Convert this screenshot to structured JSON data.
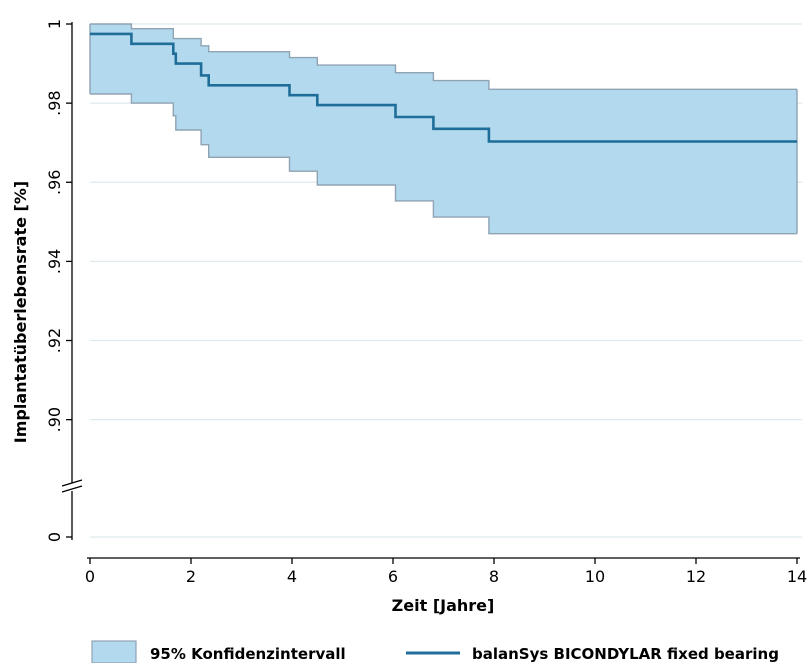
{
  "chart_data": {
    "type": "line",
    "title": "",
    "xlabel": "Zeit [Jahre]",
    "ylabel": "Implantatüberlebensrate [%]",
    "xlim": [
      0,
      14
    ],
    "ylim_upper": [
      0.885,
      1.0
    ],
    "broken_y_axis": true,
    "x_ticks": [
      0,
      2,
      4,
      6,
      8,
      10,
      12,
      14
    ],
    "x_tick_labels": [
      "0",
      "2",
      "4",
      "6",
      "8",
      "10",
      "12",
      "14"
    ],
    "y_ticks": [
      0.9,
      0.92,
      0.94,
      0.96,
      0.98,
      1.0
    ],
    "y_tick_labels": [
      ".90",
      ".92",
      ".94",
      ".96",
      ".98",
      "1"
    ],
    "y_break_tick_label": "0",
    "grid": "horizontal",
    "legend_position": "bottom",
    "legend": {
      "ci_label": "95% Konfidenzintervall",
      "series_label": "balanSys BICONDYLAR fixed bearing"
    },
    "colors": {
      "ci_fill": "#b3d9ef",
      "ci_edge": "#8fa3b3",
      "line": "#1f6e99",
      "grid": "#dfe9ee"
    },
    "series": [
      {
        "name": "balanSys BICONDYLAR fixed bearing",
        "steps": [
          {
            "x": 0.0,
            "y": 0.9975
          },
          {
            "x": 0.82,
            "y": 0.995
          },
          {
            "x": 1.65,
            "y": 0.9925
          },
          {
            "x": 1.7,
            "y": 0.99
          },
          {
            "x": 2.2,
            "y": 0.987
          },
          {
            "x": 2.35,
            "y": 0.9845
          },
          {
            "x": 3.95,
            "y": 0.982
          },
          {
            "x": 4.5,
            "y": 0.9795
          },
          {
            "x": 6.05,
            "y": 0.9765
          },
          {
            "x": 6.8,
            "y": 0.9735
          },
          {
            "x": 7.9,
            "y": 0.9703
          }
        ],
        "end_x": 14.0
      }
    ],
    "confidence_interval": {
      "upper": [
        {
          "x": 0.0,
          "y": 1.0
        },
        {
          "x": 0.82,
          "y": 0.9988
        },
        {
          "x": 1.65,
          "y": 0.9963
        },
        {
          "x": 2.2,
          "y": 0.9945
        },
        {
          "x": 2.35,
          "y": 0.993
        },
        {
          "x": 3.95,
          "y": 0.9915
        },
        {
          "x": 4.5,
          "y": 0.9896
        },
        {
          "x": 6.05,
          "y": 0.9877
        },
        {
          "x": 6.8,
          "y": 0.9857
        },
        {
          "x": 7.9,
          "y": 0.9835
        }
      ],
      "lower": [
        {
          "x": 0.0,
          "y": 0.9823
        },
        {
          "x": 0.82,
          "y": 0.98
        },
        {
          "x": 1.65,
          "y": 0.9768
        },
        {
          "x": 1.7,
          "y": 0.9732
        },
        {
          "x": 2.2,
          "y": 0.9695
        },
        {
          "x": 2.35,
          "y": 0.9663
        },
        {
          "x": 3.95,
          "y": 0.9628
        },
        {
          "x": 4.5,
          "y": 0.9593
        },
        {
          "x": 6.05,
          "y": 0.9553
        },
        {
          "x": 6.8,
          "y": 0.9512
        },
        {
          "x": 7.9,
          "y": 0.947
        }
      ],
      "end_x": 14.0
    }
  }
}
